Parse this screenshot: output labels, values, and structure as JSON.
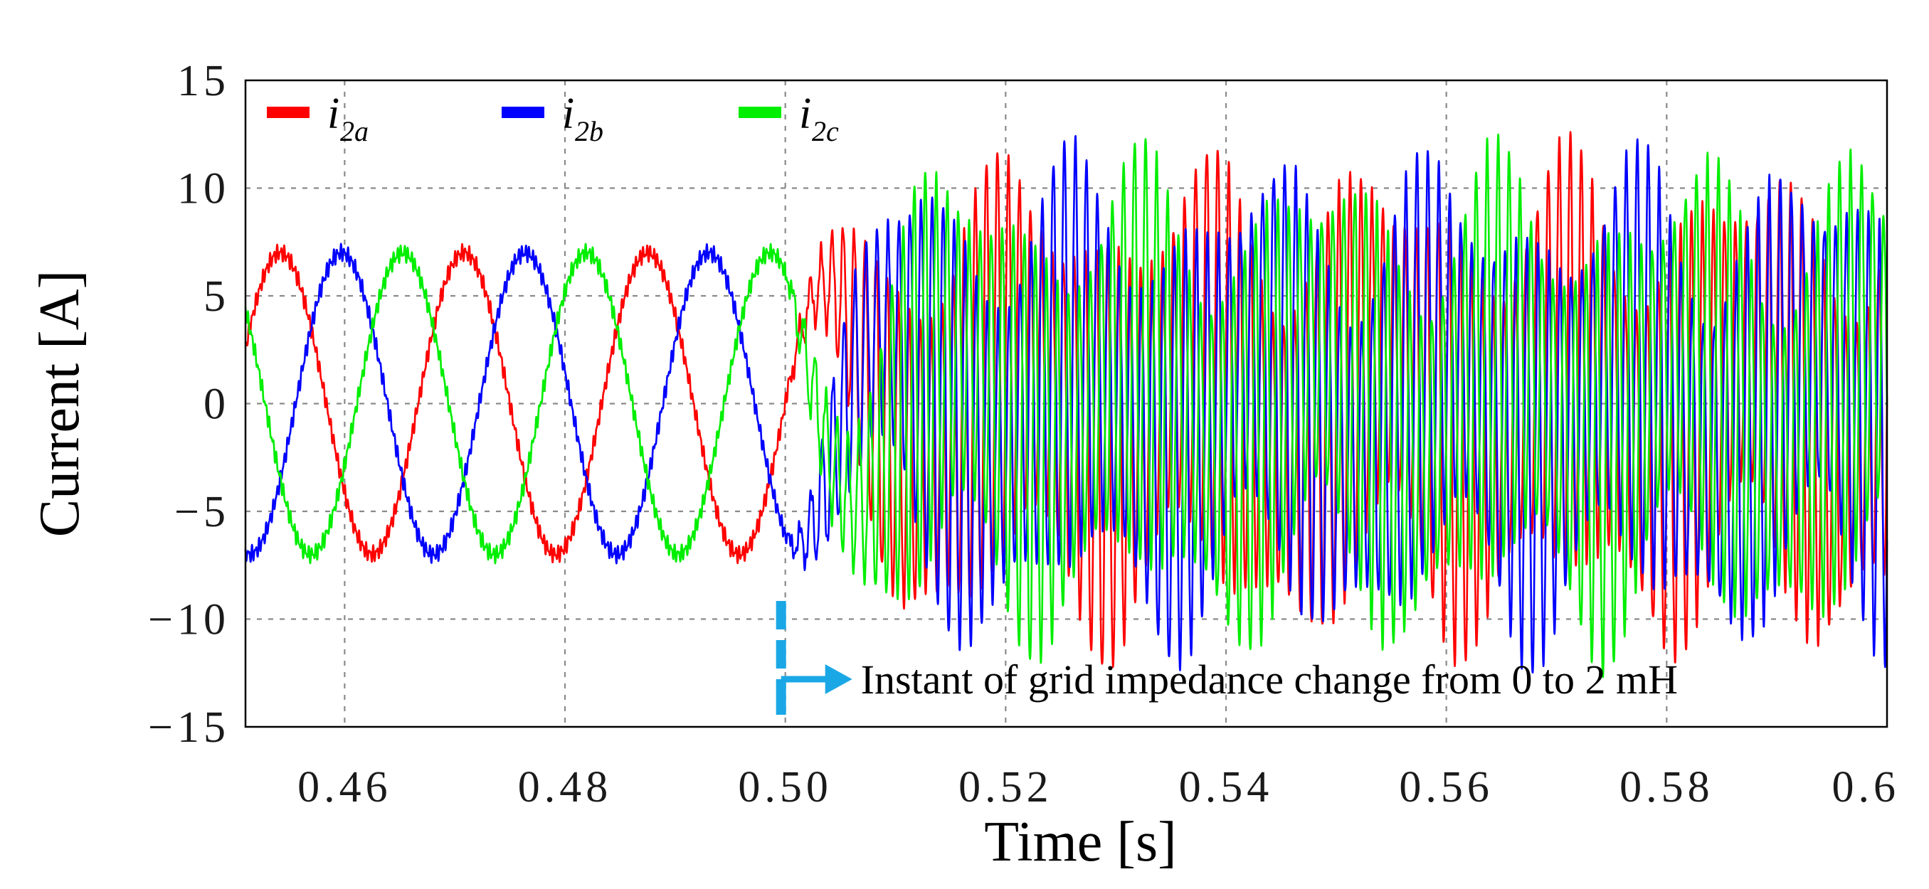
{
  "chart_data": {
    "type": "line",
    "title": "",
    "xlabel": "Time [s]",
    "ylabel": "Current [A]",
    "xlim": [
      0.451,
      0.6
    ],
    "ylim": [
      -15,
      15
    ],
    "x_ticks": [
      0.46,
      0.48,
      0.5,
      0.52,
      0.54,
      0.56,
      0.58,
      0.6
    ],
    "x_tick_labels": [
      "0.46",
      "0.48",
      "0.50",
      "0.52",
      "0.54",
      "0.56",
      "0.58",
      "0.6"
    ],
    "y_ticks": [
      15,
      10,
      5,
      0,
      -5,
      -10,
      -15
    ],
    "y_tick_labels": [
      "15",
      "10",
      "5",
      "0",
      "−5",
      "−10",
      "−15"
    ],
    "grid": true,
    "legend_position": "top-left",
    "series": [
      {
        "name": "i2a",
        "legend_main": "i",
        "legend_sub": "2a",
        "color": "#ff0000",
        "phase_deg": 0
      },
      {
        "name": "i2b",
        "legend_main": "i",
        "legend_sub": "2b",
        "color": "#0000ff",
        "phase_deg": -120
      },
      {
        "name": "i2c",
        "legend_main": "i",
        "legend_sub": "2c",
        "color": "#00ee00",
        "phase_deg": 120
      }
    ],
    "signal_model": {
      "fundamental_hz": 60,
      "stable_amplitude": 7,
      "unstable_fundamental_amplitude": 2.5,
      "oscillation_hz": 1000,
      "oscillation_amplitude": 8,
      "change_time": 0.5
    },
    "annotation": {
      "text": "Instant of grid impedance change from 0 to 2 mH",
      "x": 0.5,
      "marker_color": "#1aa7e6"
    }
  }
}
